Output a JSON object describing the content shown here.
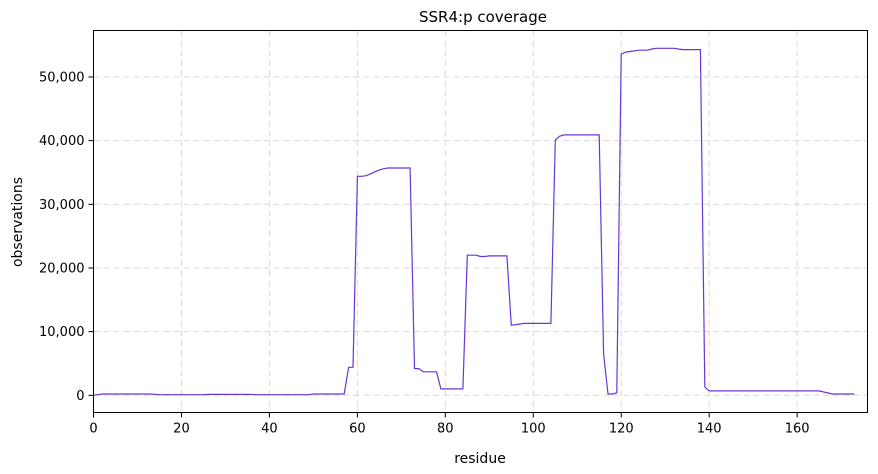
{
  "chart_data": {
    "type": "line",
    "title": "SSR4:p coverage",
    "xlabel": "residue",
    "ylabel": "observations",
    "xlim": [
      0,
      176
    ],
    "ylim": [
      -2700,
      57300
    ],
    "xticks": [
      0,
      20,
      40,
      60,
      80,
      100,
      120,
      140,
      160
    ],
    "yticks": [
      0,
      10000,
      20000,
      30000,
      40000,
      50000
    ],
    "ytick_labels": [
      "0",
      "10,000",
      "20,000",
      "30,000",
      "40,000",
      "50,000"
    ],
    "grid": true,
    "line_color": "#6a35d8",
    "series": [
      {
        "x": [
          0,
          2,
          5,
          10,
          13,
          15,
          20,
          25,
          26,
          30,
          35,
          38,
          40,
          45,
          49,
          50,
          54,
          57,
          58,
          59,
          60,
          61,
          62,
          63,
          64,
          65,
          66,
          67,
          68,
          70,
          72,
          73,
          74,
          75,
          76,
          77,
          78,
          79,
          80,
          81,
          82,
          83,
          84,
          85,
          86,
          87,
          88,
          89,
          90,
          91,
          92,
          93,
          94,
          95,
          96,
          97,
          98,
          100,
          102,
          104,
          105,
          106,
          107,
          108,
          110,
          112,
          114,
          115,
          116,
          117,
          118,
          119,
          120,
          121,
          122,
          123,
          124,
          125,
          126,
          127,
          128,
          129,
          130,
          131,
          132,
          133,
          134,
          135,
          136,
          137,
          138,
          139,
          140,
          141,
          145,
          150,
          155,
          160,
          165,
          168,
          169,
          170,
          173
        ],
        "y": [
          0,
          200,
          200,
          200,
          200,
          100,
          100,
          100,
          150,
          150,
          150,
          100,
          100,
          100,
          100,
          200,
          200,
          200,
          4400,
          4400,
          34400,
          34400,
          34500,
          34800,
          35100,
          35400,
          35600,
          35700,
          35700,
          35700,
          35700,
          4200,
          4200,
          3700,
          3700,
          3700,
          3700,
          1000,
          1000,
          1000,
          1000,
          1000,
          1000,
          22000,
          22000,
          22000,
          21800,
          21800,
          21900,
          21900,
          21900,
          21900,
          21900,
          11000,
          11100,
          11200,
          11300,
          11300,
          11300,
          11300,
          40100,
          40700,
          40900,
          40900,
          40900,
          40900,
          40900,
          40900,
          6500,
          200,
          200,
          400,
          53600,
          53900,
          54000,
          54100,
          54200,
          54200,
          54200,
          54400,
          54500,
          54500,
          54500,
          54500,
          54500,
          54400,
          54300,
          54300,
          54300,
          54300,
          54300,
          1300,
          700,
          700,
          700,
          700,
          700,
          700,
          700,
          200,
          200,
          200,
          200
        ]
      }
    ]
  }
}
